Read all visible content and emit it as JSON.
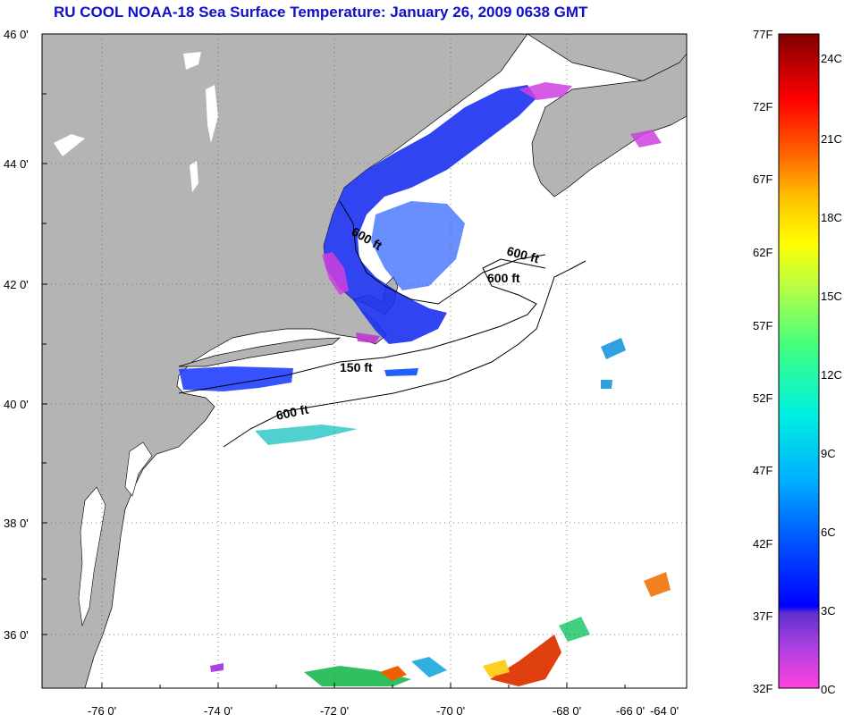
{
  "title": "RU COOL  NOAA-18  Sea Surface Temperature:  January 26, 2009 0638 GMT",
  "colors": {
    "land": "#b4b4b4",
    "ocean": "#ffffff",
    "title": "#1010c8"
  },
  "axes": {
    "lon_labels": [
      "-76 0'",
      "-74 0'",
      "-72 0'",
      "-70 0'",
      "-68 0'",
      "-66 0'",
      "-64 0'"
    ],
    "lat_labels": [
      "46 0'",
      "44 0'",
      "42 0'",
      "40 0'",
      "38 0'",
      "36 0'"
    ]
  },
  "contours": [
    "600 ft",
    "600 ft",
    "600 ft",
    "150 ft",
    "600 ft"
  ],
  "colorbar": {
    "fahrenheit": [
      "77F",
      "72F",
      "67F",
      "62F",
      "57F",
      "52F",
      "47F",
      "42F",
      "37F",
      "32F"
    ],
    "celsius": [
      "24C",
      "21C",
      "18C",
      "15C",
      "12C",
      "9C",
      "6C",
      "3C",
      "0C"
    ]
  }
}
